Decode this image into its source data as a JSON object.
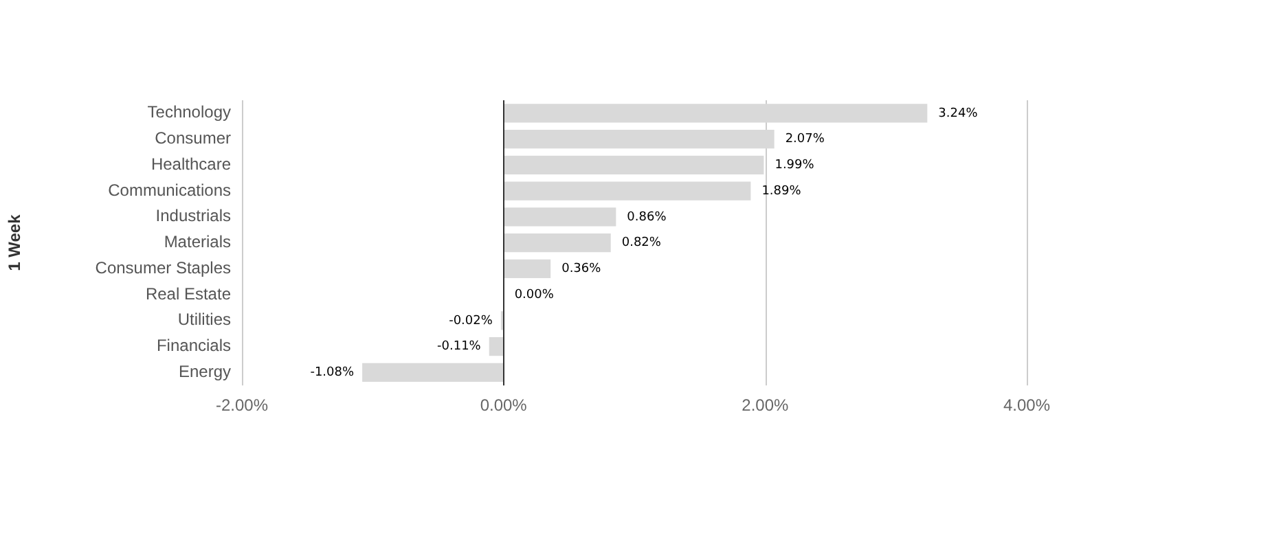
{
  "chart_data": {
    "type": "bar",
    "orientation": "horizontal",
    "ylabel": "1 Week",
    "categories": [
      "Technology",
      "Consumer",
      "Healthcare",
      "Communications",
      "Industrials",
      "Materials",
      "Consumer Staples",
      "Real Estate",
      "Utilities",
      "Financials",
      "Energy"
    ],
    "values": [
      3.24,
      2.07,
      1.99,
      1.89,
      0.86,
      0.82,
      0.36,
      0.0,
      -0.02,
      -0.11,
      -1.08
    ],
    "value_labels": [
      "3.24%",
      "2.07%",
      "1.99%",
      "1.89%",
      "0.86%",
      "0.82%",
      "0.36%",
      "0.00%",
      "-0.02%",
      "-0.11%",
      "-1.08%"
    ],
    "color": "#d9d9d9",
    "xlim": [
      -2,
      4
    ],
    "xticks": [
      {
        "value": -2,
        "label": "-2.00%"
      },
      {
        "value": 0,
        "label": "0.00%"
      },
      {
        "value": 2,
        "label": "2.00%"
      },
      {
        "value": 4,
        "label": "4.00%"
      }
    ],
    "ref_lines": [
      {
        "axis": "x",
        "value": 0,
        "color": "#333333"
      }
    ],
    "grid": "x",
    "legend": false
  }
}
